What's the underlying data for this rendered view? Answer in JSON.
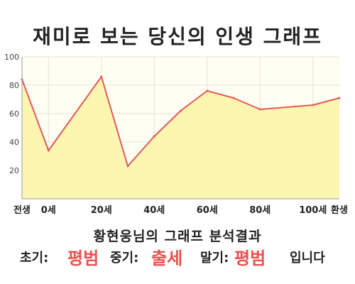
{
  "title": "재미로 보는 당신의 인생 그래프",
  "chart_data": {
    "type": "area",
    "title": "재미로 보는 당신의 인생 그래프",
    "categories": [
      "전생",
      "0세",
      "20세",
      "40세",
      "60세",
      "80세",
      "100세",
      "환생"
    ],
    "x": [
      -10,
      0,
      20,
      30,
      40,
      50,
      60,
      70,
      80,
      100,
      110
    ],
    "values": [
      84,
      34,
      86,
      23,
      44,
      62,
      76,
      71,
      63,
      66,
      71
    ],
    "ylim": [
      0,
      100
    ],
    "yticks": [
      20,
      40,
      60,
      80,
      100
    ],
    "grid": true,
    "legend": "none",
    "xlabel": "",
    "ylabel": ""
  },
  "colors": {
    "line": "#e2595b",
    "fill": "#fdf6b0",
    "plot_bg": "#fefef2",
    "highlight": "#ea5050"
  },
  "summary": {
    "heading": "황현웅님의 그래프 분석결과",
    "early_label": "초기:",
    "early_value": "평범",
    "middle_label": "중기:",
    "middle_value": "출세",
    "late_label": "말기:",
    "late_value": "평범",
    "ending": "입니다"
  }
}
